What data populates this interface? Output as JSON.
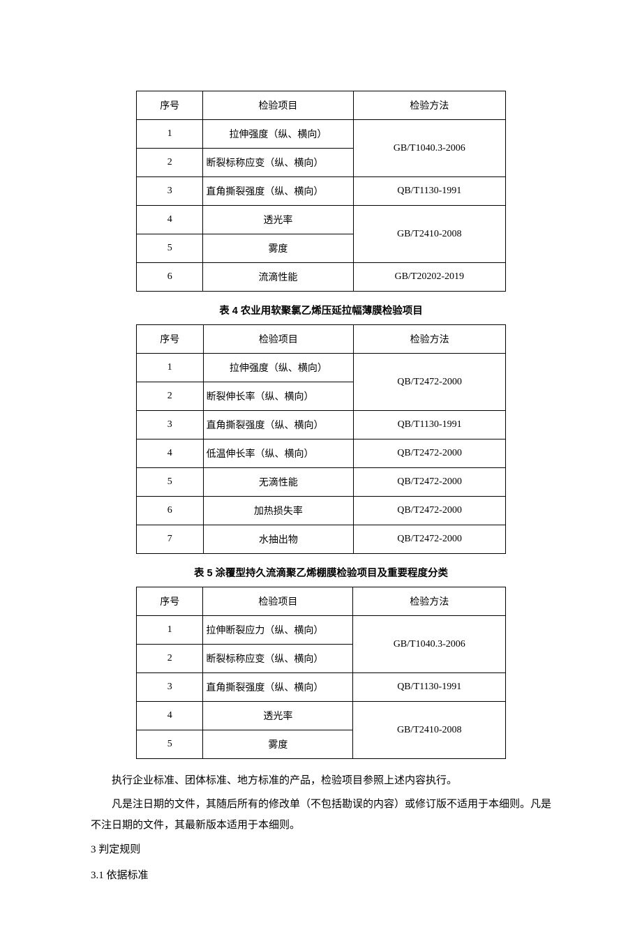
{
  "table3": {
    "headers": {
      "seq": "序号",
      "item": "检验项目",
      "method": "检验方法"
    },
    "rows": [
      {
        "seq": "1",
        "item": "拉伸强度（纵、横向）",
        "method": "GB/T1040.3-2006",
        "method_rowspan": 2
      },
      {
        "seq": "2",
        "item": "断裂标称应变（纵、横向）"
      },
      {
        "seq": "3",
        "item": "直角撕裂强度（纵、横向）",
        "method": "QB/T1130-1991",
        "method_rowspan": 1
      },
      {
        "seq": "4",
        "item": "透光率",
        "method": "GB/T2410-2008",
        "method_rowspan": 2
      },
      {
        "seq": "5",
        "item": "雾度"
      },
      {
        "seq": "6",
        "item": "流滴性能",
        "method": "GB/T20202-2019",
        "method_rowspan": 1
      }
    ]
  },
  "caption4": "表 4 农业用软聚氯乙烯压延拉幅薄膜检验项目",
  "table4": {
    "headers": {
      "seq": "序号",
      "item": "检验项目",
      "method": "检验方法"
    },
    "rows": [
      {
        "seq": "1",
        "item": "拉伸强度（纵、横向）",
        "method": "QB/T2472-2000",
        "method_rowspan": 2
      },
      {
        "seq": "2",
        "item": "断裂伸长率（纵、横向）"
      },
      {
        "seq": "3",
        "item": "直角撕裂强度（纵、横向）",
        "method": "QB/T1130-1991",
        "method_rowspan": 1
      },
      {
        "seq": "4",
        "item": "低温伸长率（纵、横向）",
        "method": "QB/T2472-2000",
        "method_rowspan": 1
      },
      {
        "seq": "5",
        "item": "无滴性能",
        "method": "QB/T2472-2000",
        "method_rowspan": 1
      },
      {
        "seq": "6",
        "item": "加热损失率",
        "method": "QB/T2472-2000",
        "method_rowspan": 1
      },
      {
        "seq": "7",
        "item": "水抽出物",
        "method": "QB/T2472-2000",
        "method_rowspan": 1
      }
    ]
  },
  "caption5": "表 5 涂覆型持久流滴聚乙烯棚膜检验项目及重要程度分类",
  "table5": {
    "headers": {
      "seq": "序号",
      "item": "检验项目",
      "method": "检验方法"
    },
    "rows": [
      {
        "seq": "1",
        "item": "拉伸断裂应力（纵、横向）",
        "method": "GB/T1040.3-2006",
        "method_rowspan": 2
      },
      {
        "seq": "2",
        "item": "断裂标称应变（纵、横向）"
      },
      {
        "seq": "3",
        "item": "直角撕裂强度（纵、横向）",
        "method": "QB/T1130-1991",
        "method_rowspan": 1
      },
      {
        "seq": "4",
        "item": "透光率",
        "method": "GB/T2410-2008",
        "method_rowspan": 2
      },
      {
        "seq": "5",
        "item": "雾度"
      }
    ]
  },
  "para1": "执行企业标准、团体标准、地方标准的产品，检验项目参照上述内容执行。",
  "para2": "凡是注日期的文件，其随后所有的修改单（不包括勘误的内容）或修订版不适用于本细则。凡是不注日期的文件，其最新版本适用于本细则。",
  "h3": "3 判定规则",
  "h31": "3.1 依据标准"
}
